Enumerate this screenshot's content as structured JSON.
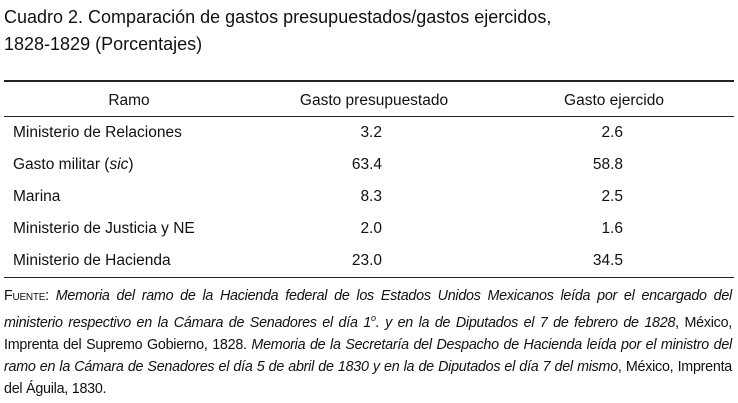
{
  "title": {
    "line1": "Cuadro 2. Comparación de gastos presupuestados/gastos ejercidos,",
    "line2": "1828-1829 (Porcentajes)"
  },
  "table": {
    "header": [
      "Ramo",
      "Gasto presupuestado",
      "Gasto ejercido"
    ],
    "rows": [
      [
        "Ministerio de Relaciones",
        "3.2",
        "2.6"
      ],
      [
        [
          "Gasto militar (",
          "sic",
          ")"
        ],
        "63.4",
        "58.8"
      ],
      [
        "Marina",
        "8.3",
        "2.5"
      ],
      [
        "Ministerio de Justicia y NE",
        "2.0",
        "1.6"
      ],
      [
        "Ministerio de Hacienda",
        "23.0",
        "34.5"
      ]
    ]
  },
  "source": {
    "label": "Fuente:",
    "segments": [
      "Memoria del ramo de la Hacienda federal de los Estados Unidos Mexicanos leída por el encargado del ministerio respectivo en la Cámara de Senadores el día 1",
      "o",
      ". y en la de Diputados el 7 de febrero de 1828",
      ", México, Imprenta del Supremo Gobierno, 1828.",
      "Memoria de la Secretaría del Despacho de Hacienda leída por el ministro del ramo en la Cámara de Senadores el día 5 de abril de 1830 y en la de Diputados el día 7 del mismo",
      ", México, Imprenta del Águila, 1830."
    ]
  }
}
